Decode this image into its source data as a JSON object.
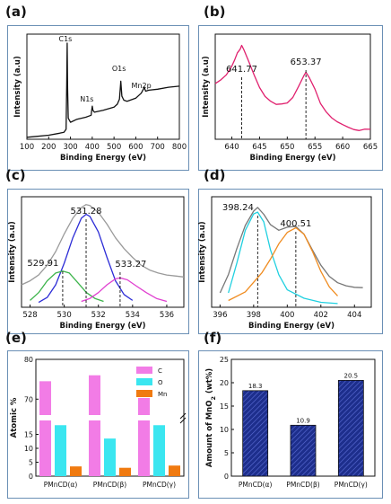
{
  "panels": {
    "a": {
      "label": "(a)"
    },
    "b": {
      "label": "(b)"
    },
    "c": {
      "label": "(c)"
    },
    "d": {
      "label": "(d)"
    },
    "e": {
      "label": "(e)"
    },
    "f": {
      "label": "(f)"
    }
  },
  "chart_data": [
    {
      "id": "a",
      "type": "line",
      "xlabel": "Binding Energy (eV)",
      "ylabel": "Intensity (a.u)",
      "xlim": [
        100,
        800
      ],
      "xticks": [
        100,
        200,
        300,
        400,
        500,
        600,
        700,
        800
      ],
      "annotations": [
        {
          "text": "C1s",
          "x": 285
        },
        {
          "text": "N1s",
          "x": 400
        },
        {
          "text": "O1s",
          "x": 531
        },
        {
          "text": "Mn2p",
          "x": 642
        }
      ],
      "series": [
        {
          "color": "#111111",
          "x": [
            100,
            150,
            200,
            250,
            270,
            280,
            283,
            285,
            287,
            290,
            300,
            330,
            370,
            395,
            398,
            400,
            403,
            410,
            450,
            500,
            515,
            525,
            531,
            536,
            545,
            560,
            600,
            625,
            640,
            642,
            645,
            660,
            700,
            750,
            800
          ],
          "y": [
            0.02,
            0.03,
            0.04,
            0.06,
            0.07,
            0.1,
            0.55,
            0.96,
            0.5,
            0.21,
            0.17,
            0.2,
            0.22,
            0.24,
            0.3,
            0.33,
            0.29,
            0.27,
            0.29,
            0.32,
            0.35,
            0.4,
            0.58,
            0.43,
            0.39,
            0.38,
            0.41,
            0.46,
            0.52,
            0.5,
            0.48,
            0.49,
            0.5,
            0.52,
            0.53
          ]
        }
      ]
    },
    {
      "id": "b",
      "type": "line",
      "xlabel": "Binding Energy (eV)",
      "ylabel": "Intensity (a.u)",
      "xlim": [
        637,
        665
      ],
      "xticks": [
        640,
        645,
        650,
        655,
        660,
        665
      ],
      "peaks": [
        {
          "text": "641.77",
          "x": 641.77
        },
        {
          "text": "653.37",
          "x": 653.37
        }
      ],
      "series": [
        {
          "color": "#e0206e",
          "x": [
            637,
            638,
            639,
            640,
            640.5,
            641,
            641.5,
            641.77,
            642.2,
            643,
            644,
            645,
            646,
            647,
            648,
            649,
            650,
            651,
            652,
            653,
            653.37,
            654,
            655,
            656,
            657,
            658,
            659,
            660,
            661,
            662,
            663,
            664,
            665
          ],
          "y": [
            0.6,
            0.62,
            0.66,
            0.74,
            0.8,
            0.86,
            0.88,
            0.9,
            0.86,
            0.78,
            0.68,
            0.58,
            0.5,
            0.45,
            0.42,
            0.43,
            0.45,
            0.5,
            0.58,
            0.66,
            0.68,
            0.64,
            0.56,
            0.45,
            0.38,
            0.32,
            0.28,
            0.26,
            0.25,
            0.24,
            0.23,
            0.23,
            0.22
          ]
        }
      ]
    },
    {
      "id": "c",
      "type": "line",
      "xlabel": "Binding Energy (eV)",
      "ylabel": "Intensity (a.u)",
      "xlim": [
        527.5,
        537
      ],
      "xticks": [
        528,
        530,
        532,
        534,
        536
      ],
      "peaks": [
        {
          "text": "529.91",
          "x": 529.91
        },
        {
          "text": "531.28",
          "x": 531.28
        },
        {
          "text": "533.27",
          "x": 533.27
        }
      ],
      "series": [
        {
          "color": "#9a9a9a",
          "x": [
            527.5,
            528,
            528.5,
            529,
            529.5,
            530,
            530.5,
            531,
            531.28,
            531.5,
            532,
            532.5,
            533,
            533.5,
            534,
            534.5,
            535,
            535.5,
            536,
            536.5,
            537
          ],
          "y": [
            0.18,
            0.22,
            0.28,
            0.38,
            0.52,
            0.7,
            0.86,
            0.97,
            1.0,
            0.99,
            0.92,
            0.8,
            0.66,
            0.55,
            0.46,
            0.38,
            0.33,
            0.3,
            0.28,
            0.27,
            0.26
          ]
        },
        {
          "color": "#2c2cd6",
          "x": [
            528.5,
            529,
            529.5,
            530,
            530.5,
            531,
            531.28,
            531.5,
            532,
            532.5,
            533,
            533.5,
            534
          ],
          "y": [
            0.0,
            0.05,
            0.18,
            0.4,
            0.66,
            0.86,
            0.9,
            0.88,
            0.72,
            0.46,
            0.22,
            0.08,
            0.02
          ]
        },
        {
          "color": "#3cb44b",
          "x": [
            528,
            528.5,
            529,
            529.5,
            529.91,
            530.3,
            530.8,
            531.3,
            531.8,
            532.3
          ],
          "y": [
            0.02,
            0.1,
            0.22,
            0.3,
            0.32,
            0.3,
            0.2,
            0.1,
            0.04,
            0.01
          ]
        },
        {
          "color": "#e040d0",
          "x": [
            531,
            531.5,
            532,
            532.5,
            533,
            533.27,
            533.7,
            534.2,
            534.8,
            535.4,
            536
          ],
          "y": [
            0.01,
            0.04,
            0.1,
            0.18,
            0.24,
            0.25,
            0.23,
            0.17,
            0.1,
            0.04,
            0.01
          ]
        }
      ]
    },
    {
      "id": "d",
      "type": "line",
      "xlabel": "Binding Energy (eV)",
      "ylabel": "Intensity (a.u)",
      "xlim": [
        395.5,
        405
      ],
      "xticks": [
        396,
        398,
        400,
        402,
        404
      ],
      "peaks": [
        {
          "text": "398.24",
          "x": 398.24
        },
        {
          "text": "400.51",
          "x": 400.51
        }
      ],
      "series": [
        {
          "color": "#777777",
          "x": [
            396,
            396.5,
            397,
            397.5,
            398,
            398.24,
            398.6,
            399,
            399.5,
            400,
            400.51,
            401,
            401.5,
            402,
            402.5,
            403,
            403.5,
            404,
            404.5
          ],
          "y": [
            0.1,
            0.28,
            0.55,
            0.8,
            0.96,
            1.0,
            0.92,
            0.8,
            0.74,
            0.78,
            0.8,
            0.72,
            0.55,
            0.38,
            0.26,
            0.2,
            0.18,
            0.17,
            0.16
          ]
        },
        {
          "color": "#20d0e0",
          "x": [
            396.5,
            397,
            397.5,
            398,
            398.24,
            398.6,
            399,
            399.5,
            400,
            401,
            402,
            403
          ],
          "y": [
            0.1,
            0.4,
            0.74,
            0.92,
            0.95,
            0.85,
            0.55,
            0.28,
            0.12,
            0.04,
            0.01,
            0.0
          ]
        },
        {
          "color": "#f08c20",
          "x": [
            396.5,
            397.5,
            398.5,
            399,
            399.5,
            400,
            400.51,
            401,
            401.5,
            402,
            402.5,
            403
          ],
          "y": [
            0.02,
            0.1,
            0.3,
            0.45,
            0.62,
            0.74,
            0.78,
            0.7,
            0.52,
            0.32,
            0.17,
            0.08
          ]
        }
      ]
    },
    {
      "id": "e",
      "type": "bar",
      "ylabel": "Atomic %",
      "categories": [
        "PMnCD(α)",
        "PMnCD(β)",
        "PMnCD(γ)"
      ],
      "yticks_lower": [
        0,
        5,
        10,
        15
      ],
      "ytick_upper": [
        70,
        80
      ],
      "legend_position": "top-right",
      "series": [
        {
          "name": "C",
          "color": "#f27ce6",
          "values": [
            74.5,
            76.0,
            70.3
          ]
        },
        {
          "name": "O",
          "color": "#3ae6f0",
          "values": [
            18.3,
            13.5,
            18.3
          ]
        },
        {
          "name": "Mn",
          "color": "#f07a10",
          "values": [
            3.5,
            3.0,
            3.8
          ]
        }
      ]
    },
    {
      "id": "f",
      "type": "bar",
      "ylabel": "Amount of MnO",
      "ylabel_subscript": "2",
      "ylabel_suffix": " (wt%)",
      "categories": [
        "PMnCD(α)",
        "PMnCD(β)",
        "PMnCD(γ)"
      ],
      "values": [
        18.3,
        10.9,
        20.5
      ],
      "value_labels": [
        "18.3",
        "10.9",
        "20.5"
      ],
      "ylim": [
        0,
        25
      ],
      "yticks": [
        0,
        5,
        10,
        15,
        20,
        25
      ],
      "color": "#1d2e8c"
    }
  ]
}
